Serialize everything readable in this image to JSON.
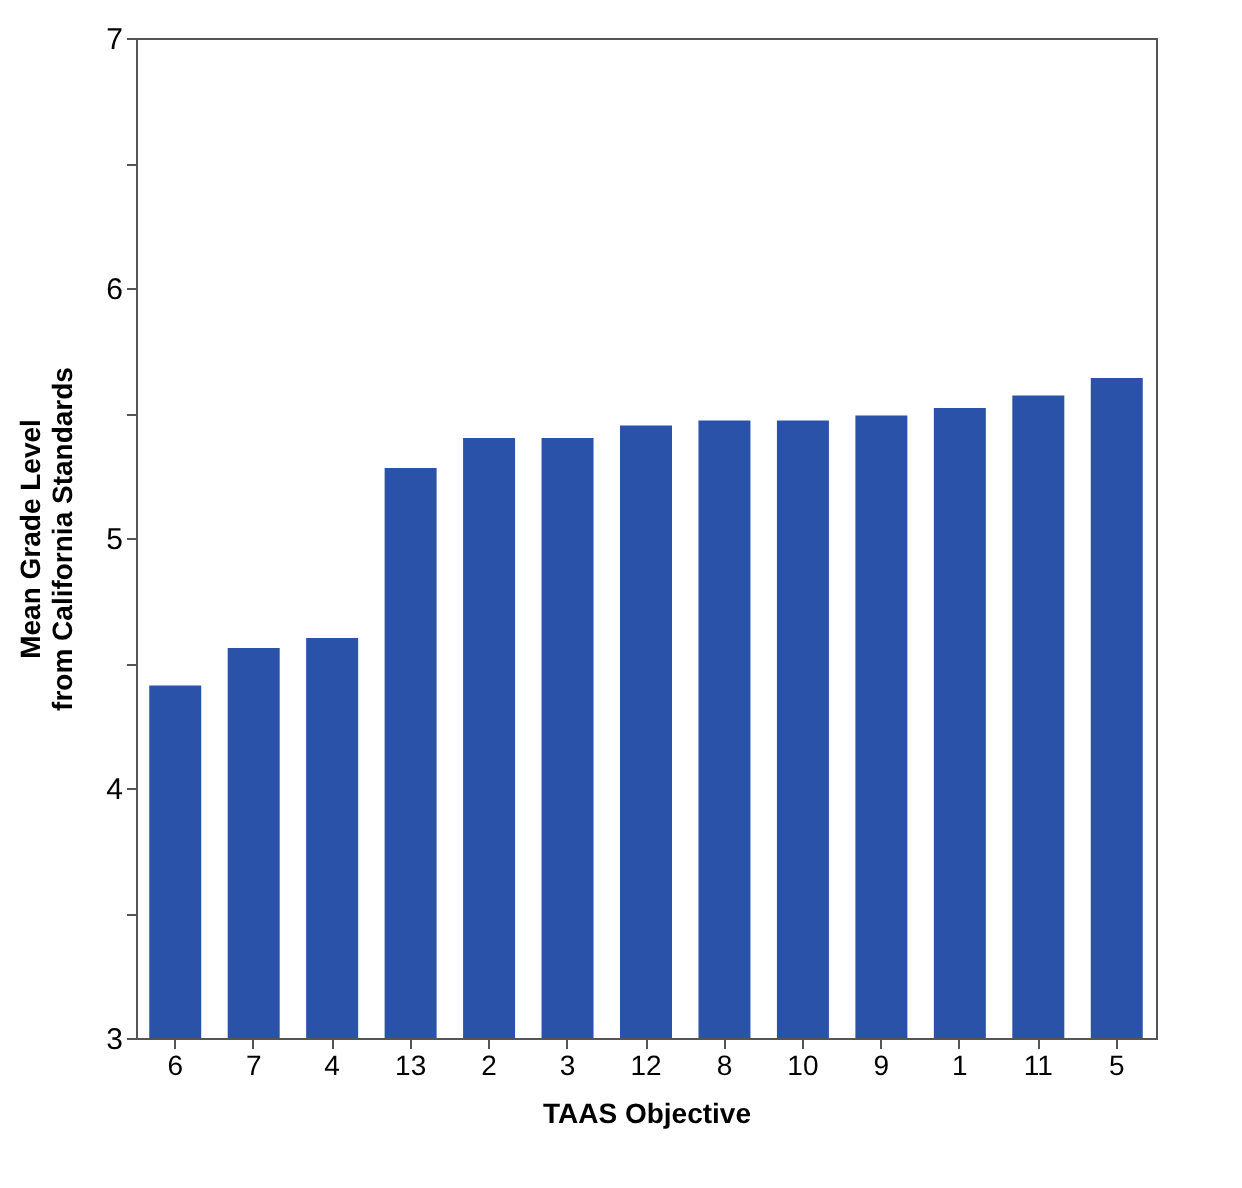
{
  "chart_data": {
    "type": "bar",
    "xlabel": "TAAS Objective",
    "ylabel": "Mean Grade Level\nfrom California Standards",
    "categories": [
      "6",
      "7",
      "4",
      "13",
      "2",
      "3",
      "12",
      "8",
      "10",
      "9",
      "1",
      "11",
      "5"
    ],
    "values": [
      4.41,
      4.56,
      4.6,
      5.28,
      5.4,
      5.4,
      5.45,
      5.47,
      5.47,
      5.49,
      5.52,
      5.57,
      5.64
    ],
    "color": "#2a52a8",
    "ylim": [
      3,
      7
    ],
    "yticks": [
      3,
      {
        "value": 3.5,
        "label": null
      },
      4,
      {
        "value": 4.5,
        "label": null
      },
      5,
      {
        "value": 5.5,
        "label": null
      },
      6,
      {
        "value": 6.5,
        "label": null
      },
      7
    ],
    "grid": false
  }
}
